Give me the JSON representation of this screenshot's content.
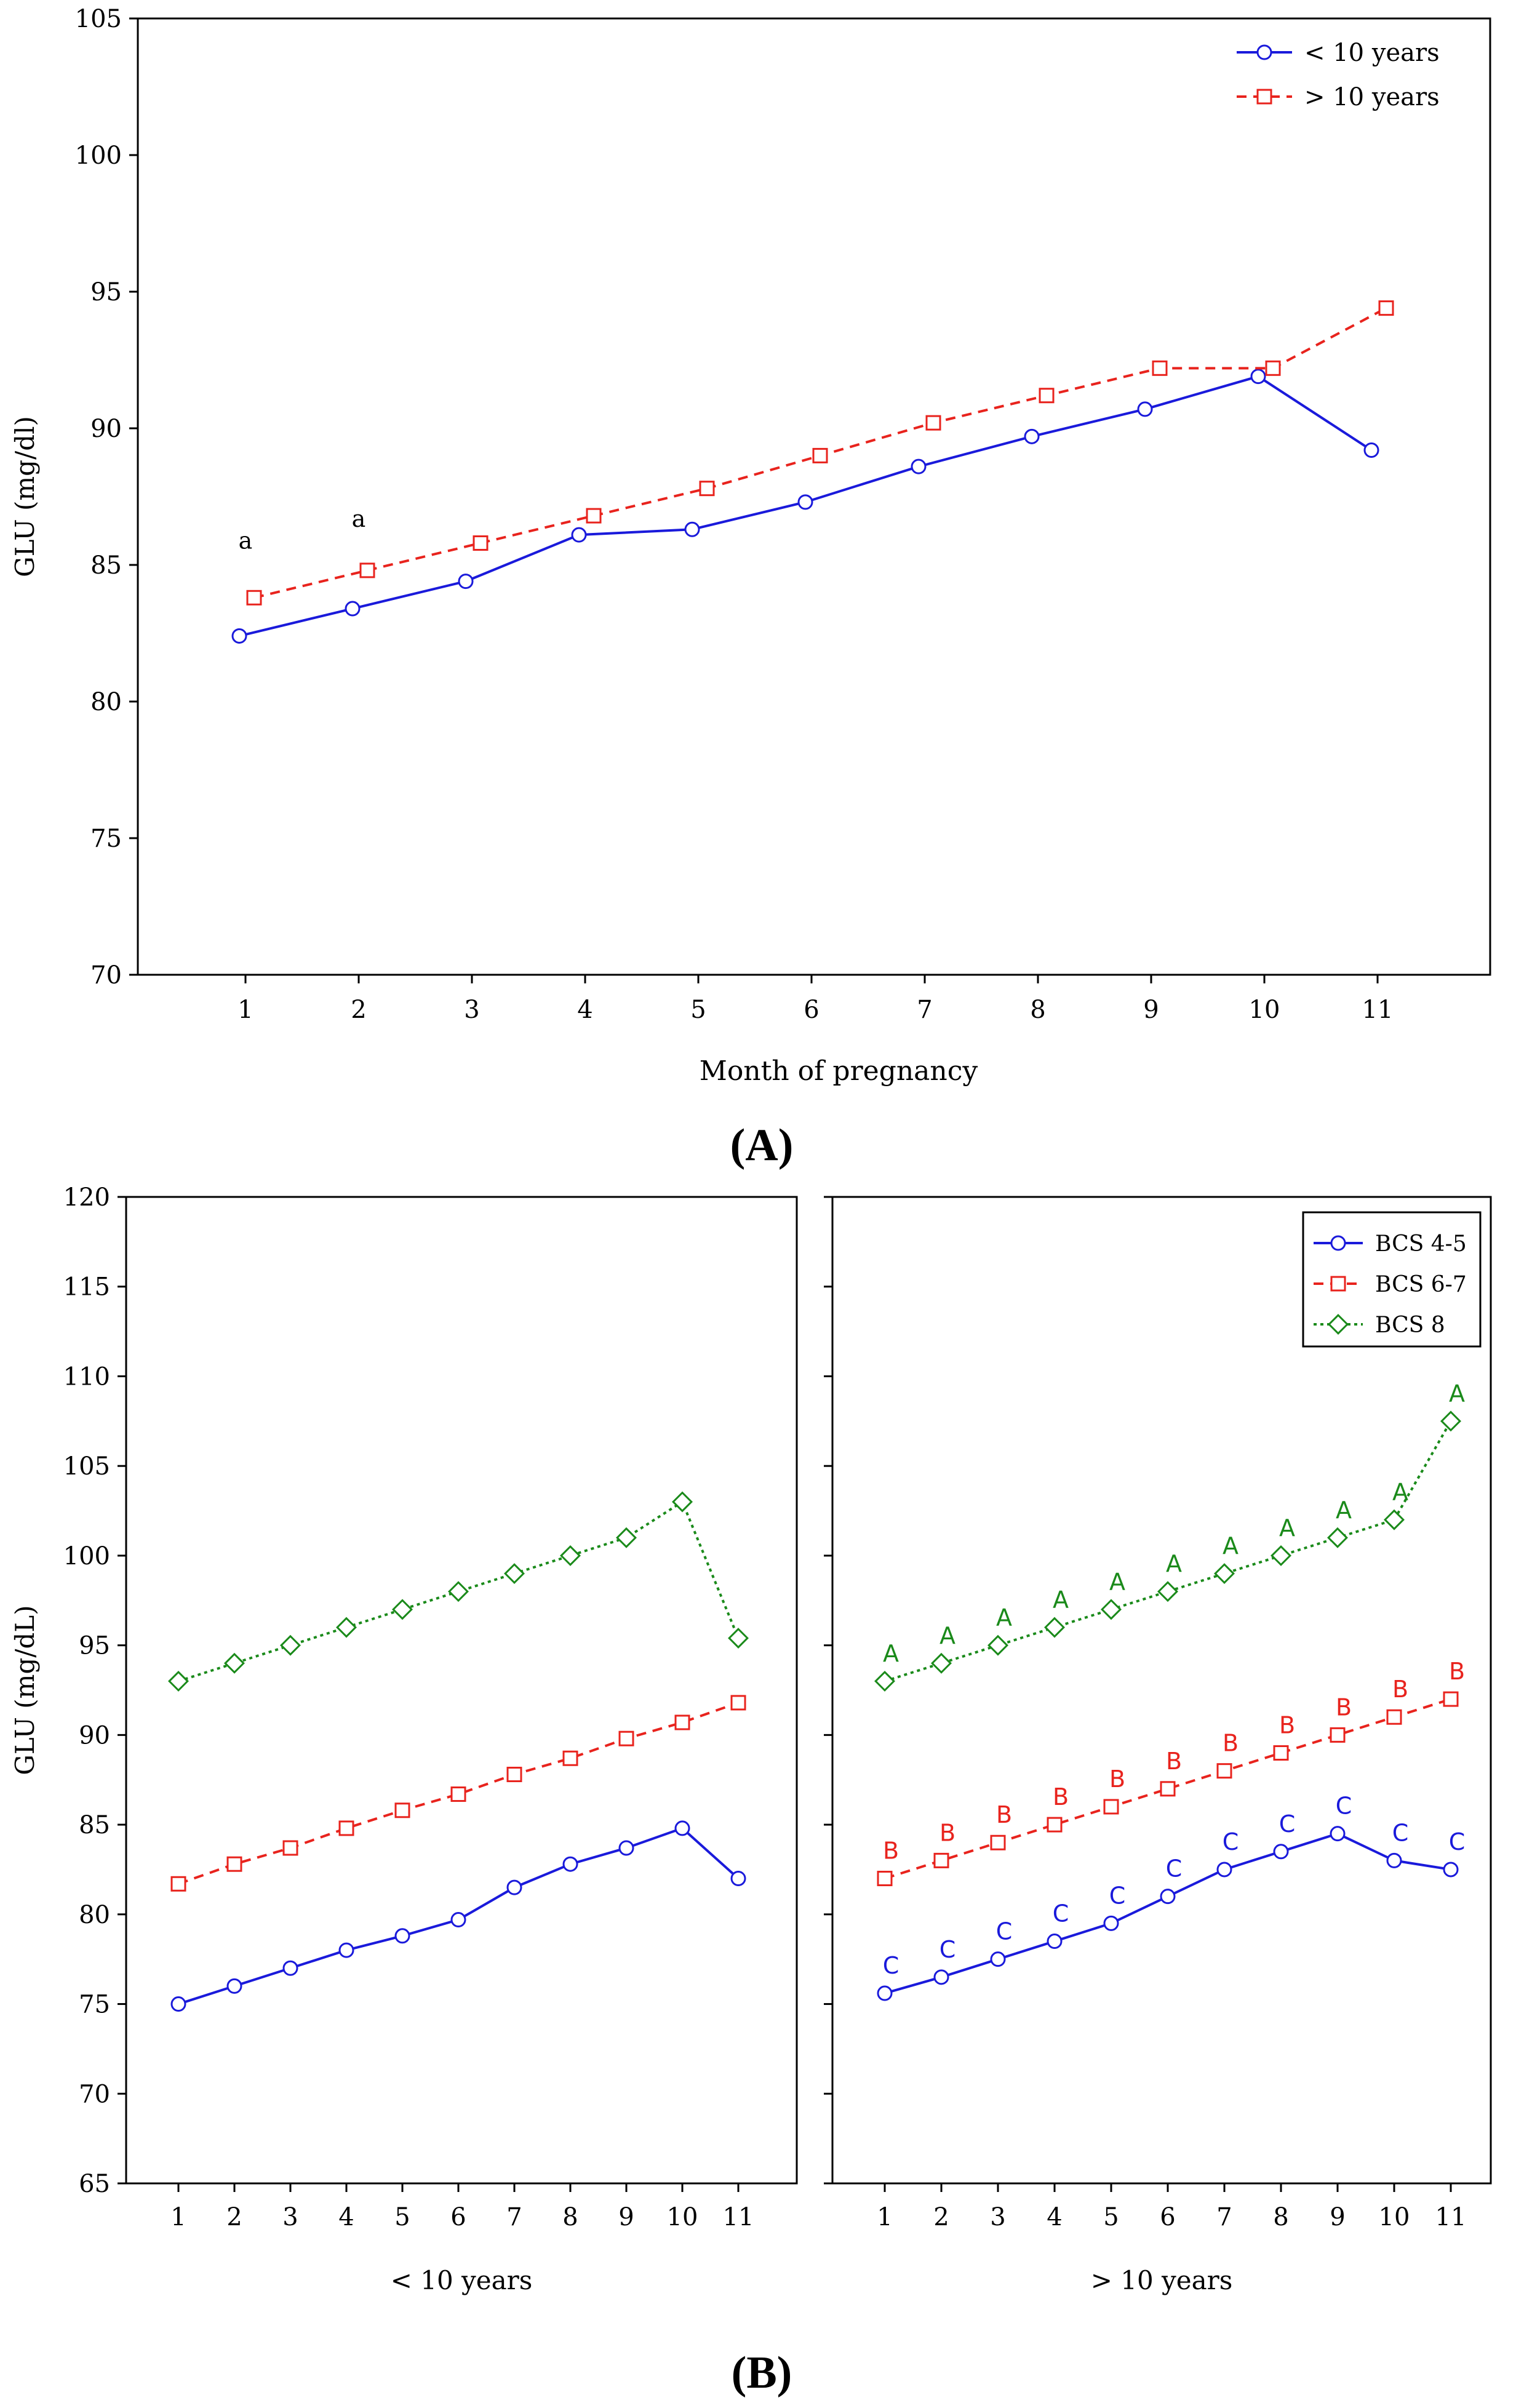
{
  "chart_data": [
    {
      "type": "line",
      "panel_label": "A",
      "xlabel": "Month of pregnancy",
      "ylabel": "GLU (mg/dl)",
      "ylim": [
        70,
        105
      ],
      "yticks": [
        70,
        75,
        80,
        85,
        90,
        95,
        100,
        105
      ],
      "categories": [
        "1",
        "2",
        "3",
        "4",
        "5",
        "6",
        "7",
        "8",
        "9",
        "10",
        "11"
      ],
      "legend_position": "top-right",
      "legend": [
        "< 10 years",
        "> 10 years"
      ],
      "series": [
        {
          "name": "< 10 years",
          "color": "#1a1adb",
          "dash": "solid",
          "marker": "circle",
          "values": [
            82.4,
            83.4,
            84.4,
            86.1,
            86.3,
            87.3,
            88.6,
            89.7,
            90.7,
            91.9,
            89.2
          ]
        },
        {
          "name": "> 10 years",
          "color": "#e8231d",
          "dash": "dashed",
          "marker": "square",
          "values": [
            83.8,
            84.8,
            85.8,
            86.8,
            87.8,
            89.0,
            90.2,
            91.2,
            92.2,
            92.2,
            94.4
          ]
        }
      ],
      "annotations": [
        {
          "text": "a",
          "month": 1,
          "value": 85.6
        },
        {
          "text": "a",
          "month": 2,
          "value": 86.4
        }
      ]
    },
    {
      "type": "line",
      "panel_label": "B",
      "ylabel": "GLU (mg/dL)",
      "ylim": [
        65,
        120
      ],
      "yticks": [
        65,
        70,
        75,
        80,
        85,
        90,
        95,
        100,
        105,
        110,
        115,
        120
      ],
      "categories": [
        "1",
        "2",
        "3",
        "4",
        "5",
        "6",
        "7",
        "8",
        "9",
        "10",
        "11"
      ],
      "legend_position": "top-right of right facet",
      "legend": [
        "BCS 4-5",
        "BCS 6-7",
        "BCS 8"
      ],
      "facets": [
        {
          "xlabel": "< 10 years",
          "series": [
            {
              "name": "BCS 4-5",
              "color": "#1a1adb",
              "dash": "solid",
              "marker": "circle",
              "values": [
                75.0,
                76.0,
                77.0,
                78.0,
                78.8,
                79.7,
                81.5,
                82.8,
                83.7,
                84.8,
                82.0
              ]
            },
            {
              "name": "BCS 6-7",
              "color": "#e8231d",
              "dash": "dashed",
              "marker": "square",
              "values": [
                81.7,
                82.8,
                83.7,
                84.8,
                85.8,
                86.7,
                87.8,
                88.7,
                89.8,
                90.7,
                91.8
              ]
            },
            {
              "name": "BCS 8",
              "color": "#1a8a1a",
              "dash": "dotted",
              "marker": "diamond",
              "values": [
                93.0,
                94.0,
                95.0,
                96.0,
                97.0,
                98.0,
                99.0,
                100.0,
                101.0,
                103.0,
                95.4
              ]
            }
          ]
        },
        {
          "xlabel": "> 10 years",
          "series": [
            {
              "name": "BCS 4-5",
              "color": "#1a1adb",
              "dash": "solid",
              "marker": "circle",
              "values": [
                75.6,
                76.5,
                77.5,
                78.5,
                79.5,
                81.0,
                82.5,
                83.5,
                84.5,
                83.0,
                82.5
              ],
              "letters": [
                "C",
                "C",
                "C",
                "C",
                "C",
                "C",
                "C",
                "C",
                "C",
                "C",
                "C"
              ]
            },
            {
              "name": "BCS 6-7",
              "color": "#e8231d",
              "dash": "dashed",
              "marker": "square",
              "values": [
                82.0,
                83.0,
                84.0,
                85.0,
                86.0,
                87.0,
                88.0,
                89.0,
                90.0,
                91.0,
                92.0
              ],
              "letters": [
                "B",
                "B",
                "B",
                "B",
                "B",
                "B",
                "B",
                "B",
                "B",
                "B",
                "B"
              ]
            },
            {
              "name": "BCS 8",
              "color": "#1a8a1a",
              "dash": "dotted",
              "marker": "diamond",
              "values": [
                93.0,
                94.0,
                95.0,
                96.0,
                97.0,
                98.0,
                99.0,
                100.0,
                101.0,
                102.0,
                107.5
              ],
              "letters": [
                "A",
                "A",
                "A",
                "A",
                "A",
                "A",
                "A",
                "A",
                "A",
                "A",
                "A"
              ]
            }
          ]
        }
      ]
    }
  ]
}
